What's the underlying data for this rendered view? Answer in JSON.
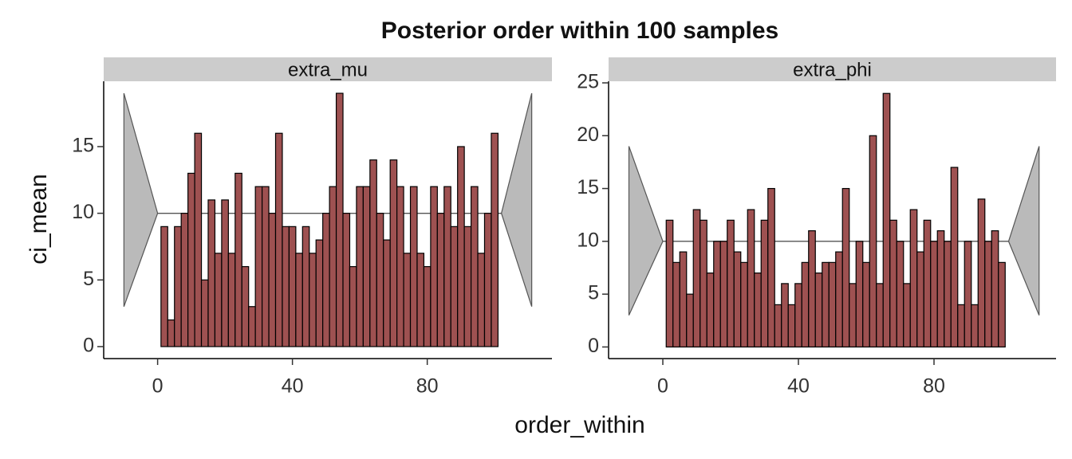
{
  "title": "Posterior order within 100 samples",
  "xlabel": "order_within",
  "ylabel": "ci_mean",
  "chart_data": [
    {
      "type": "histogram",
      "strip": "extra_mu",
      "color": "#9e5151",
      "bins": [
        1,
        3,
        5,
        7,
        9,
        11,
        13,
        15,
        17,
        19,
        21,
        23,
        25,
        27,
        29,
        31,
        33,
        35,
        37,
        39,
        41,
        43,
        45,
        47,
        49,
        51,
        53,
        55,
        57,
        59,
        61,
        63,
        65,
        67,
        69,
        71,
        73,
        75,
        77,
        79,
        81,
        83,
        85,
        87,
        89,
        91,
        93,
        95,
        97,
        99,
        101
      ],
      "values": [
        9,
        2,
        9,
        10,
        13,
        16,
        5,
        11,
        7,
        11,
        7,
        13,
        6,
        3,
        12,
        12,
        10,
        16,
        9,
        9,
        7,
        9,
        7,
        8,
        10,
        12,
        19,
        10,
        6,
        12,
        12,
        14,
        10,
        8,
        14,
        12,
        7,
        12,
        7,
        6,
        12,
        10,
        12,
        9,
        15,
        9,
        12,
        7,
        10,
        16
      ],
      "band": {
        "x": [
          -10,
          0,
          102,
          111
        ],
        "lower": [
          3,
          10,
          10,
          3
        ],
        "upper": [
          19,
          10,
          10,
          19
        ],
        "mid": 10,
        "color": "#bababa"
      },
      "xlim": [
        -16,
        117
      ],
      "ylim": [
        -0.9,
        19.9
      ],
      "xticks": [
        0,
        40,
        80
      ],
      "yticks": [
        0,
        5,
        10,
        15
      ]
    },
    {
      "type": "histogram",
      "strip": "extra_phi",
      "color": "#9e5151",
      "bins": [
        1,
        3,
        5,
        7,
        9,
        11,
        13,
        15,
        17,
        19,
        21,
        23,
        25,
        27,
        29,
        31,
        33,
        35,
        37,
        39,
        41,
        43,
        45,
        47,
        49,
        51,
        53,
        55,
        57,
        59,
        61,
        63,
        65,
        67,
        69,
        71,
        73,
        75,
        77,
        79,
        81,
        83,
        85,
        87,
        89,
        91,
        93,
        95,
        97,
        99,
        101
      ],
      "values": [
        12,
        8,
        9,
        5,
        13,
        12,
        7,
        10,
        10,
        12,
        9,
        8,
        13,
        7,
        12,
        15,
        4,
        6,
        4,
        6,
        8,
        11,
        7,
        8,
        8,
        9,
        15,
        6,
        10,
        8,
        20,
        6,
        24,
        12,
        10,
        6,
        13,
        9,
        12,
        10,
        11,
        10,
        17,
        4,
        10,
        4,
        14,
        10,
        11,
        8
      ],
      "band": {
        "x": [
          -10,
          0,
          102,
          111
        ],
        "lower": [
          3,
          10,
          10,
          3
        ],
        "upper": [
          19,
          10,
          10,
          19
        ],
        "mid": 10,
        "color": "#bababa"
      },
      "xlim": [
        -16,
        116
      ],
      "ylim": [
        -1.1,
        25.15
      ],
      "xticks": [
        0,
        40,
        80
      ],
      "yticks": [
        0,
        5,
        10,
        15,
        20,
        25
      ]
    }
  ]
}
